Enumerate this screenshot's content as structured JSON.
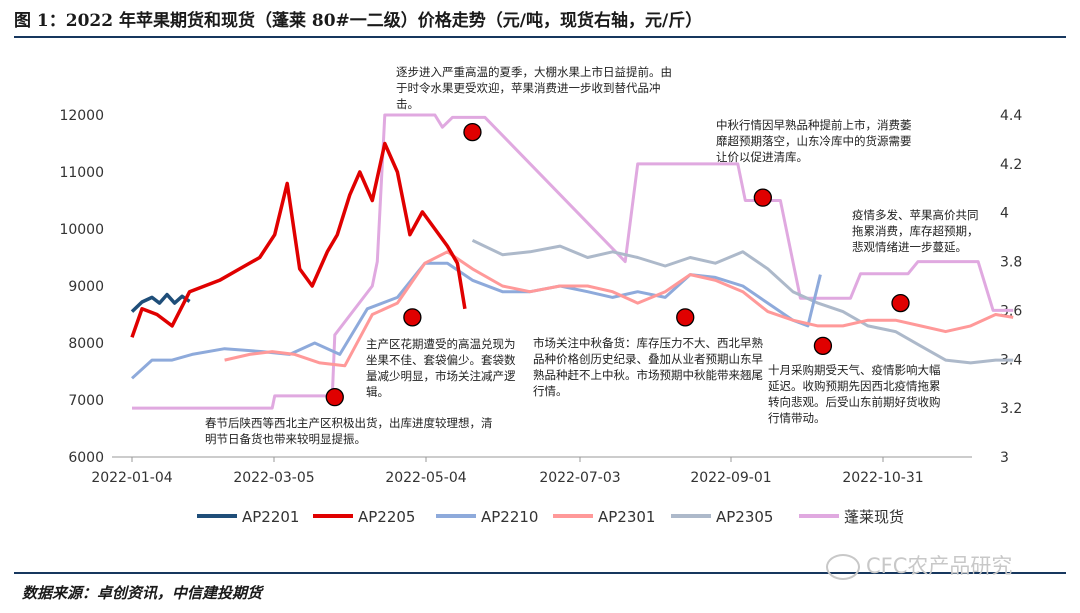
{
  "title": "图 1：2022 年苹果期货和现货（蓬莱 80#一二级）价格走势（元/吨，现货右轴，元/斤）",
  "source": "数据来源：卓创资讯，中信建投期货",
  "watermark": "CFC农产品研究",
  "colors": {
    "AP2201": "#1f4e79",
    "AP2205": "#e00000",
    "AP2210": "#8eaadb",
    "AP2301": "#ff9999",
    "AP2305": "#adb9ca",
    "spot": "#e0a9e0",
    "marker": "#e00000",
    "rule": "#17375e"
  },
  "annotations": [
    "春节后陕西等西北主产区积极出货，出库进度较理想，清明节日备货也带来较明显提振。",
    "主产区花期遭受的高温兑现为坐果不佳、套袋偏少。套袋数量减少明显，市场关注减产逻辑。",
    "逐步进入严重高温的夏季，大棚水果上市日益提前。由于时令水果更受欢迎，苹果消费进一步收到替代品冲击。",
    "市场关注中秋备货：库存压力不大、西北早熟品种价格创历史纪录、叠加从业者预期山东早熟品种赶不上中秋。市场预期中秋能带来翘尾行情。",
    "中秋行情因早熟品种提前上市，消费萎靡超预期落空，山东冷库中的货源需要让价以促进清库。",
    "十月采购期受天气、疫情影响大幅延迟。收购预期先因西北疫情拖累转向悲观。后受山东前期好货收购行情带动。",
    "疫情多发、苹果高价共同拖累消费，库存超预期，悲观情绪进一步蔓延。"
  ],
  "chart_data": {
    "type": "line",
    "title": "图 1：2022 年苹果期货和现货（蓬莱 80#一二级）价格走势（元/吨，现货右轴，元/斤）",
    "xlabel": "",
    "ylabel": "",
    "x_ticks": [
      "2022-01-04",
      "2022-03-05",
      "2022-05-04",
      "2022-07-03",
      "2022-09-01",
      "2022-10-31"
    ],
    "ylim": [
      6000,
      12000
    ],
    "y_ticks": [
      6000,
      7000,
      8000,
      9000,
      10000,
      11000,
      12000
    ],
    "y2lim": [
      3.0,
      4.4
    ],
    "y2_ticks": [
      3,
      3.2,
      3.4,
      3.6,
      3.8,
      4,
      4.2,
      4.4
    ],
    "grid": false,
    "legend": "bottom",
    "series": [
      {
        "name": "AP2201",
        "axis": "left",
        "x": [
          "2022-01-04",
          "2022-01-08",
          "2022-01-12",
          "2022-01-15",
          "2022-01-18",
          "2022-01-21",
          "2022-01-24",
          "2022-01-27"
        ],
        "values": [
          8550,
          8720,
          8800,
          8700,
          8850,
          8700,
          8820,
          8730
        ]
      },
      {
        "name": "AP2205",
        "axis": "left",
        "x": [
          "2022-01-04",
          "2022-01-08",
          "2022-01-14",
          "2022-01-20",
          "2022-01-27",
          "2022-02-08",
          "2022-02-16",
          "2022-02-24",
          "2022-03-02",
          "2022-03-07",
          "2022-03-12",
          "2022-03-17",
          "2022-03-23",
          "2022-03-27",
          "2022-04-01",
          "2022-04-05",
          "2022-04-10",
          "2022-04-15",
          "2022-04-20",
          "2022-04-25",
          "2022-04-30",
          "2022-05-05",
          "2022-05-10",
          "2022-05-14",
          "2022-05-17"
        ],
        "values": [
          8100,
          8600,
          8500,
          8300,
          8900,
          9100,
          9300,
          9500,
          9900,
          10800,
          9300,
          9000,
          9600,
          9900,
          10600,
          11000,
          10500,
          11500,
          11000,
          9900,
          10300,
          10000,
          9700,
          9400,
          8600
        ]
      },
      {
        "name": "AP2210",
        "axis": "left",
        "x": [
          "2022-01-04",
          "2022-01-12",
          "2022-01-20",
          "2022-01-28",
          "2022-02-10",
          "2022-02-25",
          "2022-03-08",
          "2022-03-18",
          "2022-03-28",
          "2022-04-08",
          "2022-04-20",
          "2022-05-01",
          "2022-05-10",
          "2022-05-20",
          "2022-06-01",
          "2022-06-12",
          "2022-06-24",
          "2022-07-05",
          "2022-07-15",
          "2022-07-25",
          "2022-08-05",
          "2022-08-15",
          "2022-08-25",
          "2022-09-05",
          "2022-09-15",
          "2022-09-25",
          "2022-10-01",
          "2022-10-06"
        ],
        "values": [
          7380,
          7700,
          7700,
          7800,
          7900,
          7850,
          7800,
          8000,
          7800,
          8600,
          8800,
          9400,
          9400,
          9100,
          8900,
          8900,
          9000,
          8900,
          8800,
          8900,
          8800,
          9200,
          9150,
          9000,
          8700,
          8400,
          8300,
          9200
        ]
      },
      {
        "name": "AP2301",
        "axis": "left",
        "x": [
          "2022-02-10",
          "2022-02-20",
          "2022-03-01",
          "2022-03-10",
          "2022-03-20",
          "2022-03-30",
          "2022-04-10",
          "2022-04-20",
          "2022-05-01",
          "2022-05-10",
          "2022-05-20",
          "2022-06-01",
          "2022-06-12",
          "2022-06-24",
          "2022-07-05",
          "2022-07-15",
          "2022-07-25",
          "2022-08-05",
          "2022-08-15",
          "2022-08-25",
          "2022-09-05",
          "2022-09-15",
          "2022-09-25",
          "2022-10-05",
          "2022-10-15",
          "2022-10-25",
          "2022-11-05",
          "2022-11-15",
          "2022-11-25",
          "2022-12-05",
          "2022-12-15",
          "2022-12-22"
        ],
        "values": [
          7700,
          7800,
          7850,
          7800,
          7650,
          7600,
          8500,
          8700,
          9400,
          9600,
          9300,
          9000,
          8900,
          9000,
          9000,
          8900,
          8700,
          8900,
          9200,
          9100,
          8900,
          8550,
          8400,
          8300,
          8300,
          8400,
          8400,
          8300,
          8200,
          8300,
          8500,
          8450
        ]
      },
      {
        "name": "AP2305",
        "axis": "left",
        "x": [
          "2022-05-20",
          "2022-06-01",
          "2022-06-12",
          "2022-06-24",
          "2022-07-05",
          "2022-07-15",
          "2022-07-25",
          "2022-08-05",
          "2022-08-15",
          "2022-08-25",
          "2022-09-05",
          "2022-09-15",
          "2022-09-25",
          "2022-10-05",
          "2022-10-15",
          "2022-10-25",
          "2022-11-05",
          "2022-11-15",
          "2022-11-25",
          "2022-12-05",
          "2022-12-15",
          "2022-12-22"
        ],
        "values": [
          9800,
          9550,
          9600,
          9700,
          9500,
          9600,
          9500,
          9350,
          9500,
          9400,
          9600,
          9300,
          8900,
          8700,
          8550,
          8300,
          8200,
          7950,
          7700,
          7650,
          7700,
          7700
        ]
      },
      {
        "name": "蓬莱现货",
        "axis": "right",
        "x": [
          "2022-01-04",
          "2022-03-01",
          "2022-03-02",
          "2022-03-25",
          "2022-03-26",
          "2022-04-10",
          "2022-04-12",
          "2022-04-15",
          "2022-05-05",
          "2022-05-08",
          "2022-05-12",
          "2022-05-25",
          "2022-07-20",
          "2022-07-25",
          "2022-08-10",
          "2022-08-12",
          "2022-09-03",
          "2022-09-06",
          "2022-09-20",
          "2022-09-28",
          "2022-10-10",
          "2022-10-18",
          "2022-10-22",
          "2022-11-10",
          "2022-11-14",
          "2022-12-08",
          "2022-12-14",
          "2022-12-22"
        ],
        "values": [
          3.2,
          3.2,
          3.25,
          3.25,
          3.5,
          3.7,
          3.8,
          4.4,
          4.4,
          4.35,
          4.39,
          4.39,
          3.8,
          4.2,
          4.2,
          4.2,
          4.2,
          4.05,
          4.05,
          3.65,
          3.65,
          3.65,
          3.75,
          3.75,
          3.8,
          3.8,
          3.6,
          3.6
        ]
      }
    ],
    "markers": [
      {
        "series": "AP2205",
        "axis": "left",
        "x": "2022-03-26",
        "value": 7050
      },
      {
        "series": "AP2205",
        "axis": "left",
        "x": "2022-04-26",
        "value": 8450
      },
      {
        "series": "AP2205",
        "axis": "left",
        "x": "2022-05-20",
        "value": 11700
      },
      {
        "series": "AP2301",
        "axis": "left",
        "x": "2022-08-13",
        "value": 8450
      },
      {
        "series": "AP2305",
        "axis": "left",
        "x": "2022-09-13",
        "value": 10550
      },
      {
        "series": "AP2301",
        "axis": "left",
        "x": "2022-10-07",
        "value": 7950
      },
      {
        "series": "AP2301",
        "axis": "left",
        "x": "2022-11-07",
        "value": 8700
      }
    ]
  }
}
